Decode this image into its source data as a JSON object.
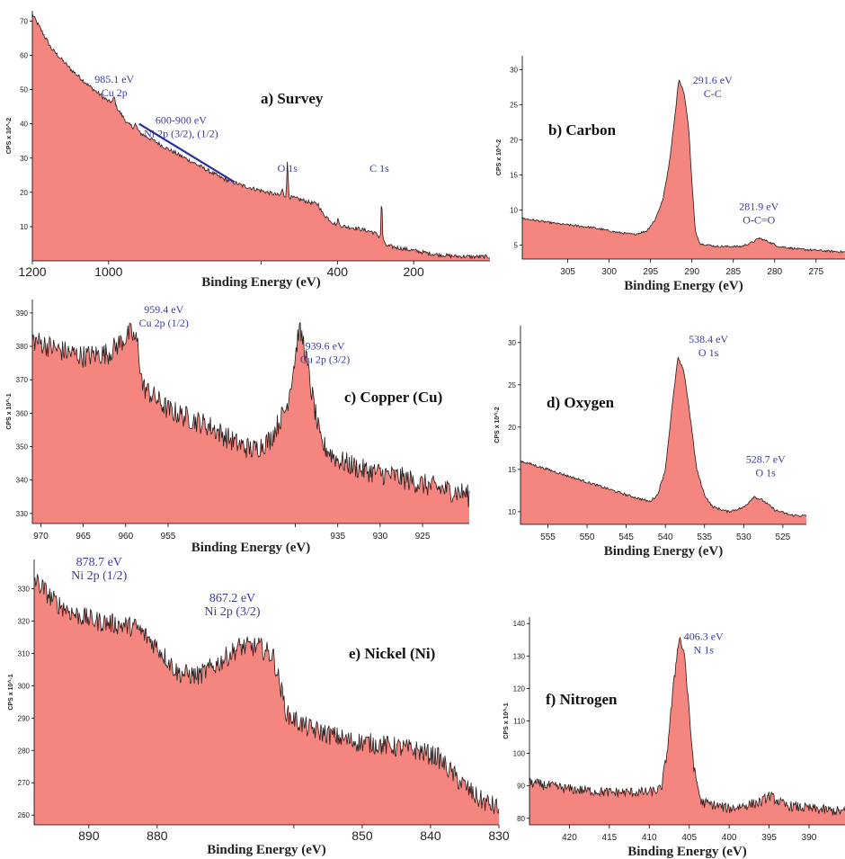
{
  "chart_data": [
    {
      "id": "survey",
      "type": "area",
      "title": "a)  Survey",
      "xlabel": "Binding Energy (eV)",
      "ylabel": "CPS x 10^-2",
      "xlim": [
        1200,
        0
      ],
      "ylim": [
        0,
        73
      ],
      "x_ticks": [
        "1200",
        "1000",
        "",
        "400",
        "200"
      ],
      "x_tick_values": [
        1200,
        1000,
        600,
        400,
        200
      ],
      "y_ticks": [
        "10",
        "20",
        "30",
        "40",
        "50",
        "60",
        "70"
      ],
      "y_tick_values": [
        10,
        20,
        30,
        40,
        50,
        60,
        70
      ],
      "noise": 0.6,
      "points": [
        [
          1200,
          72
        ],
        [
          1180,
          68
        ],
        [
          1150,
          62
        ],
        [
          1100,
          56
        ],
        [
          1050,
          51
        ],
        [
          1000,
          46.5
        ],
        [
          990,
          46.5
        ],
        [
          985,
          48
        ],
        [
          980,
          45
        ],
        [
          950,
          40
        ],
        [
          935,
          39
        ],
        [
          930,
          40
        ],
        [
          920,
          37.5
        ],
        [
          880,
          35
        ],
        [
          850,
          33
        ],
        [
          800,
          30
        ],
        [
          750,
          27
        ],
        [
          700,
          24
        ],
        [
          650,
          22
        ],
        [
          600,
          20.5
        ],
        [
          550,
          19
        ],
        [
          545,
          21
        ],
        [
          540,
          19
        ],
        [
          500,
          18
        ],
        [
          470,
          17
        ],
        [
          450,
          16.5
        ],
        [
          440,
          14
        ],
        [
          410,
          11
        ],
        [
          400,
          10.5
        ],
        [
          398,
          14
        ],
        [
          396,
          10.5
        ],
        [
          380,
          10
        ],
        [
          350,
          9.5
        ],
        [
          310,
          8.5
        ],
        [
          300,
          8
        ],
        [
          290,
          7
        ],
        [
          286,
          8
        ],
        [
          284,
          24
        ],
        [
          282,
          8
        ],
        [
          275,
          4.5
        ],
        [
          250,
          4
        ],
        [
          200,
          3
        ],
        [
          150,
          2
        ],
        [
          100,
          1.4
        ],
        [
          50,
          1.2
        ],
        [
          20,
          1.2
        ]
      ],
      "peaks": [
        [
          531,
          10,
          2.5
        ]
      ],
      "annotations": [
        {
          "lines": [
            "985.1 eV",
            "Cu 2p"
          ],
          "x": 985,
          "y": 52
        },
        {
          "lines": [
            "600-900 eV",
            "Ni 2p (3/2), (1/2)"
          ],
          "x": 810,
          "y": 40
        },
        {
          "lines": [
            "O 1s"
          ],
          "x": 531,
          "y": 26
        },
        {
          "lines": [
            "C 1s"
          ],
          "x": 290,
          "y": 26
        }
      ],
      "guide_line": {
        "from": [
          920,
          40
        ],
        "to": [
          670,
          23
        ]
      }
    },
    {
      "id": "carbon",
      "type": "area",
      "title": "b)  Carbon",
      "xlabel": "Binding Energy (eV)",
      "ylabel": "CPS x 10^-2",
      "xlim": [
        310.5,
        271.5
      ],
      "ylim": [
        3,
        32
      ],
      "x_ticks": [
        "305",
        "300",
        "295",
        "290",
        "285",
        "280",
        "275"
      ],
      "x_tick_values": [
        305,
        300,
        295,
        290,
        285,
        280,
        275
      ],
      "y_ticks": [
        "5",
        "10",
        "15",
        "20",
        "25",
        "30"
      ],
      "y_tick_values": [
        5,
        10,
        15,
        20,
        25,
        30
      ],
      "noise": 0.15,
      "points": [
        [
          310.5,
          8.8
        ],
        [
          306,
          8
        ],
        [
          302,
          7.5
        ],
        [
          299,
          6.8
        ],
        [
          297,
          6.5
        ],
        [
          295.5,
          7
        ],
        [
          294.5,
          8.5
        ],
        [
          293.5,
          11.5
        ],
        [
          292.7,
          17
        ],
        [
          292,
          24
        ],
        [
          291.6,
          28.6
        ],
        [
          291,
          27
        ],
        [
          290.4,
          22
        ],
        [
          290,
          14
        ],
        [
          289.6,
          7
        ],
        [
          289,
          5.2
        ],
        [
          287,
          4.8
        ],
        [
          284,
          4.8
        ],
        [
          282.5,
          5.5
        ],
        [
          281.9,
          6
        ],
        [
          281,
          5.6
        ],
        [
          279.5,
          4.8
        ],
        [
          277,
          4.4
        ],
        [
          273,
          4.1
        ],
        [
          271.5,
          4
        ]
      ],
      "annotations": [
        {
          "lines": [
            "291.6 eV",
            "C-C"
          ],
          "x": 287.5,
          "y": 28
        },
        {
          "lines": [
            "281.9 eV",
            "O-C=O"
          ],
          "x": 281.9,
          "y": 10
        }
      ]
    },
    {
      "id": "copper",
      "type": "area",
      "title": "c)  Copper (Cu)",
      "xlabel": "Binding Energy (eV)",
      "ylabel": "CPS x 10^-1",
      "xlim": [
        971,
        919.5
      ],
      "ylim": [
        327,
        394
      ],
      "x_ticks": [
        "970",
        "965",
        "960",
        "955",
        "",
        "935",
        "930",
        "925"
      ],
      "x_tick_values": [
        970,
        965,
        960,
        955,
        940,
        935,
        930,
        925
      ],
      "y_ticks": [
        "330",
        "340",
        "350",
        "360",
        "370",
        "380",
        "390"
      ],
      "y_tick_values": [
        330,
        340,
        350,
        360,
        370,
        380,
        390
      ],
      "noise": 3.4,
      "points": [
        [
          971,
          382
        ],
        [
          968,
          379
        ],
        [
          965,
          377
        ],
        [
          962,
          378
        ],
        [
          959.4,
          384
        ],
        [
          958.6,
          381
        ],
        [
          958,
          368
        ],
        [
          955,
          361
        ],
        [
          950,
          356
        ],
        [
          947,
          351
        ],
        [
          945,
          349
        ],
        [
          943,
          352
        ],
        [
          941,
          362
        ],
        [
          940,
          377
        ],
        [
          939.6,
          385
        ],
        [
          939,
          381
        ],
        [
          938.2,
          368
        ],
        [
          937,
          351
        ],
        [
          935,
          346
        ],
        [
          932,
          343
        ],
        [
          928,
          341
        ],
        [
          924,
          338
        ],
        [
          920,
          336
        ],
        [
          919.5,
          335
        ]
      ],
      "annotations": [
        {
          "lines": [
            "959.4 eV",
            "Cu 2p (1/2)"
          ],
          "x": 955.5,
          "y": 390
        },
        {
          "lines": [
            "939.6 eV",
            "Cu 2p (3/2)"
          ],
          "x": 936.5,
          "y": 379
        }
      ]
    },
    {
      "id": "oxygen",
      "type": "area",
      "title": "d)  Oxygen",
      "xlabel": "Binding Energy (eV)",
      "ylabel": "CPS x 10^-2",
      "xlim": [
        558.5,
        522
      ],
      "ylim": [
        8.5,
        32
      ],
      "x_ticks": [
        "555",
        "550",
        "545",
        "540",
        "535",
        "530",
        "525"
      ],
      "x_tick_values": [
        555,
        550,
        545,
        540,
        535,
        530,
        525
      ],
      "y_ticks": [
        "10",
        "15",
        "20",
        "25",
        "30"
      ],
      "y_tick_values": [
        10,
        15,
        20,
        25,
        30
      ],
      "noise": 0.15,
      "points": [
        [
          558.5,
          16
        ],
        [
          555,
          15
        ],
        [
          550,
          13.5
        ],
        [
          545,
          12
        ],
        [
          542,
          11.2
        ],
        [
          541,
          12
        ],
        [
          540,
          15
        ],
        [
          539.2,
          22
        ],
        [
          538.4,
          28.2
        ],
        [
          537.6,
          26.5
        ],
        [
          536.8,
          21
        ],
        [
          536,
          15
        ],
        [
          535,
          12
        ],
        [
          534,
          10.6
        ],
        [
          532,
          10
        ],
        [
          530,
          10.5
        ],
        [
          528.7,
          11.8
        ],
        [
          527.5,
          11.3
        ],
        [
          526,
          10.2
        ],
        [
          524,
          9.6
        ],
        [
          522,
          9.5
        ]
      ],
      "annotations": [
        {
          "lines": [
            "538.4 eV",
            "O 1s"
          ],
          "x": 534.5,
          "y": 30
        },
        {
          "lines": [
            "528.7 eV",
            "O 1s"
          ],
          "x": 527.2,
          "y": 15.8
        }
      ]
    },
    {
      "id": "nickel",
      "type": "area",
      "title": "e)  Nickel (Ni)",
      "xlabel": "Binding Energy (eV)",
      "ylabel": "CPS x 10^-1",
      "xlim": [
        898,
        830
      ],
      "ylim": [
        257,
        339
      ],
      "x_ticks": [
        "890",
        "880",
        "",
        "850",
        "840",
        "830"
      ],
      "x_tick_values": [
        890,
        880,
        860,
        850,
        840,
        830
      ],
      "y_ticks": [
        "260",
        "270",
        "280",
        "290",
        "300",
        "310",
        "320",
        "330"
      ],
      "y_tick_values": [
        260,
        270,
        280,
        290,
        300,
        310,
        320,
        330
      ],
      "noise": 3.2,
      "points": [
        [
          898,
          333
        ],
        [
          895,
          326
        ],
        [
          892,
          322
        ],
        [
          889,
          320
        ],
        [
          886,
          319
        ],
        [
          883,
          318
        ],
        [
          880,
          312
        ],
        [
          877,
          304
        ],
        [
          874,
          303
        ],
        [
          871,
          307
        ],
        [
          868,
          312
        ],
        [
          865,
          312
        ],
        [
          863,
          309
        ],
        [
          861,
          291
        ],
        [
          858,
          287
        ],
        [
          855,
          285
        ],
        [
          852,
          283
        ],
        [
          848,
          282
        ],
        [
          845,
          281
        ],
        [
          842,
          280
        ],
        [
          839,
          278
        ],
        [
          836,
          271
        ],
        [
          833,
          265
        ],
        [
          830,
          262
        ]
      ],
      "annotations": [
        {
          "lines": [
            "878.7 eV",
            "Ni 2p (1/2)"
          ],
          "x": 888.5,
          "y": 337
        },
        {
          "lines": [
            "867.2 eV",
            "Ni 2p (3/2)"
          ],
          "x": 869,
          "y": 326
        }
      ]
    },
    {
      "id": "nitrogen",
      "type": "area",
      "title": "f)  Nitrogen",
      "xlabel": "Binding Energy (eV)",
      "ylabel": "CPS x 10^-1",
      "xlim": [
        425,
        385.5
      ],
      "ylim": [
        78,
        142
      ],
      "x_ticks": [
        "420",
        "415",
        "410",
        "405",
        "400",
        "395",
        "390"
      ],
      "x_tick_values": [
        420,
        415,
        410,
        405,
        400,
        395,
        390
      ],
      "y_ticks": [
        "80",
        "90",
        "100",
        "110",
        "120",
        "130",
        "140"
      ],
      "y_tick_values": [
        80,
        90,
        100,
        110,
        120,
        130,
        140
      ],
      "noise": 1.6,
      "points": [
        [
          425,
          91
        ],
        [
          420,
          89
        ],
        [
          415,
          88
        ],
        [
          410,
          88
        ],
        [
          408.5,
          89
        ],
        [
          407.8,
          100
        ],
        [
          407,
          120
        ],
        [
          406.3,
          136
        ],
        [
          405.6,
          131
        ],
        [
          405,
          112
        ],
        [
          404.4,
          95
        ],
        [
          403.5,
          85
        ],
        [
          400,
          83
        ],
        [
          396,
          85
        ],
        [
          395,
          87
        ],
        [
          393,
          84
        ],
        [
          390,
          83
        ],
        [
          385.5,
          82
        ]
      ],
      "annotations": [
        {
          "lines": [
            "406.3 eV",
            "N 1s"
          ],
          "x": 403.2,
          "y": 135
        }
      ]
    }
  ]
}
